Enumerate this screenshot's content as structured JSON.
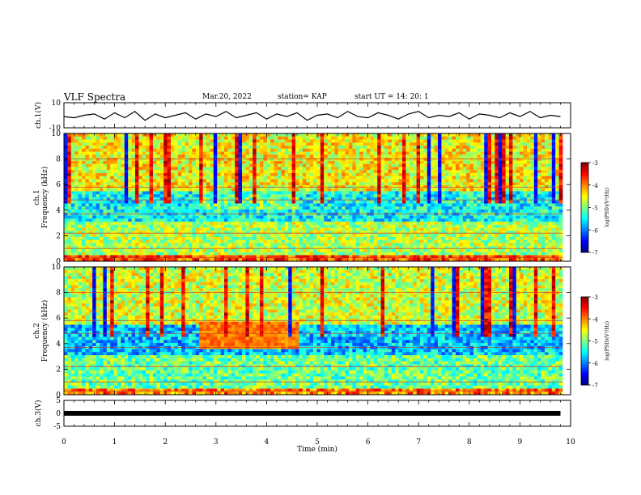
{
  "header": {
    "title": "VLF Spectra",
    "date": "Mar.20, 2022",
    "station": "station= KAP",
    "start": "start  UT =   14: 20: 1"
  },
  "chart_data": [
    {
      "type": "line",
      "panel": "ch1-waveform",
      "ylabel": "ch.1(V)",
      "ylim": [
        -10,
        10
      ],
      "ytick_labels": [
        "10",
        "-10"
      ],
      "xlim": [
        0,
        10
      ],
      "x": [
        0.0,
        0.2,
        0.4,
        0.6,
        0.8,
        1.0,
        1.2,
        1.4,
        1.6,
        1.8,
        2.0,
        2.2,
        2.4,
        2.6,
        2.8,
        3.0,
        3.2,
        3.4,
        3.6,
        3.8,
        4.0,
        4.2,
        4.4,
        4.6,
        4.8,
        5.0,
        5.2,
        5.4,
        5.6,
        5.8,
        6.0,
        6.2,
        6.4,
        6.6,
        6.8,
        7.0,
        7.2,
        7.4,
        7.6,
        7.8,
        8.0,
        8.2,
        8.4,
        8.6,
        8.8,
        9.0,
        9.2,
        9.4,
        9.6,
        9.8
      ],
      "y": [
        -1,
        -2,
        0,
        1,
        -3,
        2,
        -2,
        3,
        -4,
        1,
        -2,
        0,
        2,
        -3,
        1,
        -1,
        3,
        -2,
        0,
        2,
        -3,
        1,
        -1,
        2,
        -4,
        0,
        1,
        -2,
        3,
        -1,
        -2,
        2,
        0,
        -3,
        1,
        3,
        -2,
        0,
        -1,
        2,
        -3,
        1,
        0,
        -2,
        2,
        -1,
        3,
        -2,
        0,
        -1
      ],
      "series": [
        {
          "name": "",
          "color": "#000000"
        }
      ]
    },
    {
      "type": "heatmap",
      "panel": "ch1-spectrogram",
      "ylabel": "ch.1\nFrequency (kHz)",
      "ylim": [
        0,
        10
      ],
      "ytick_labels": [
        "0",
        "2",
        "4",
        "6",
        "8",
        "10"
      ],
      "xlim": [
        0,
        10
      ],
      "colorbar": {
        "label": "log(PSD)(V²/Hz)",
        "ticks": [
          "-3",
          "-4",
          "-5",
          "-6",
          "-7"
        ],
        "range": [
          -7,
          -3
        ]
      }
    },
    {
      "type": "heatmap",
      "panel": "ch2-spectrogram",
      "ylabel": "ch.2\nFrequency (kHz)",
      "ylim": [
        0,
        10
      ],
      "ytick_labels": [
        "0",
        "2",
        "4",
        "6",
        "8",
        "10"
      ],
      "xlim": [
        0,
        10
      ],
      "colorbar": {
        "label": "log(PSD)(V²/Hz)",
        "ticks": [
          "-3",
          "-4",
          "-5",
          "-6",
          "-7"
        ],
        "range": [
          -7,
          -3
        ]
      }
    },
    {
      "type": "line",
      "panel": "ch3-waveform",
      "ylabel": "ch.3(V)",
      "ylim": [
        -5,
        5
      ],
      "ytick_labels": [
        "5",
        "0",
        "-5"
      ],
      "xlim": [
        0,
        10
      ],
      "x": [
        0.0,
        9.8
      ],
      "y": [
        0,
        0
      ],
      "series": [
        {
          "name": "",
          "color": "#000000"
        }
      ]
    }
  ],
  "xaxis": {
    "label": "Time (min)",
    "tick_labels": [
      "0",
      "1",
      "2",
      "3",
      "4",
      "5",
      "6",
      "7",
      "8",
      "9",
      "10"
    ]
  }
}
